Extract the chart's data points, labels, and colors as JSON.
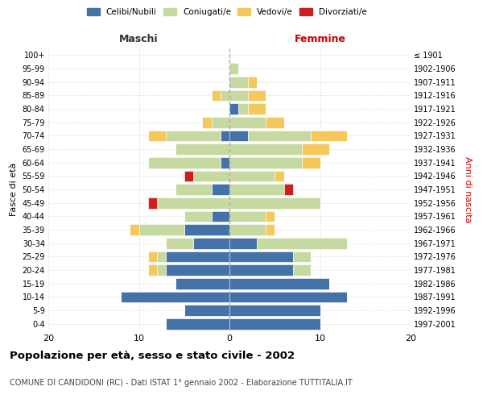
{
  "age_groups": [
    "0-4",
    "5-9",
    "10-14",
    "15-19",
    "20-24",
    "25-29",
    "30-34",
    "35-39",
    "40-44",
    "45-49",
    "50-54",
    "55-59",
    "60-64",
    "65-69",
    "70-74",
    "75-79",
    "80-84",
    "85-89",
    "90-94",
    "95-99",
    "100+"
  ],
  "birth_years": [
    "1997-2001",
    "1992-1996",
    "1987-1991",
    "1982-1986",
    "1977-1981",
    "1972-1976",
    "1967-1971",
    "1962-1966",
    "1957-1961",
    "1952-1956",
    "1947-1951",
    "1942-1946",
    "1937-1941",
    "1932-1936",
    "1927-1931",
    "1922-1926",
    "1917-1921",
    "1912-1916",
    "1907-1911",
    "1902-1906",
    "≤ 1901"
  ],
  "colors": {
    "celibi": "#4472a8",
    "coniugati": "#c5d9a0",
    "vedovi": "#f5c85c",
    "divorziati": "#cc2020"
  },
  "maschi": {
    "celibi": [
      7,
      5,
      12,
      6,
      7,
      7,
      4,
      5,
      2,
      0,
      2,
      0,
      1,
      0,
      1,
      0,
      0,
      0,
      0,
      0,
      0
    ],
    "coniugati": [
      0,
      0,
      0,
      0,
      1,
      1,
      3,
      5,
      3,
      8,
      4,
      4,
      8,
      6,
      6,
      2,
      0,
      1,
      0,
      0,
      0
    ],
    "vedovi": [
      0,
      0,
      0,
      0,
      1,
      1,
      0,
      1,
      0,
      0,
      0,
      0,
      0,
      0,
      2,
      1,
      0,
      1,
      0,
      0,
      0
    ],
    "divorziati": [
      0,
      0,
      0,
      0,
      0,
      0,
      0,
      0,
      0,
      1,
      0,
      1,
      0,
      0,
      0,
      0,
      0,
      0,
      0,
      0,
      0
    ]
  },
  "femmine": {
    "celibi": [
      10,
      10,
      13,
      11,
      7,
      7,
      3,
      0,
      0,
      0,
      0,
      0,
      0,
      0,
      2,
      0,
      1,
      0,
      0,
      0,
      0
    ],
    "coniugati": [
      0,
      0,
      0,
      0,
      2,
      2,
      10,
      4,
      4,
      10,
      6,
      5,
      8,
      8,
      7,
      4,
      1,
      2,
      2,
      1,
      0
    ],
    "vedovi": [
      0,
      0,
      0,
      0,
      0,
      0,
      0,
      1,
      1,
      0,
      0,
      1,
      2,
      3,
      4,
      2,
      2,
      2,
      1,
      0,
      0
    ],
    "divorziati": [
      0,
      0,
      0,
      0,
      0,
      0,
      0,
      0,
      0,
      0,
      1,
      0,
      0,
      0,
      0,
      0,
      0,
      0,
      0,
      0,
      0
    ]
  },
  "title": "Popolazione per età, sesso e stato civile - 2002",
  "subtitle": "COMUNE DI CANDIDONI (RC) - Dati ISTAT 1° gennaio 2002 - Elaborazione TUTTITALIA.IT",
  "xlabel_left": "Maschi",
  "xlabel_right": "Femmine",
  "ylabel_left": "Fasce di età",
  "ylabel_right": "Anni di nascita",
  "xlim": 20,
  "background_color": "#ffffff",
  "grid_color": "#cccccc"
}
